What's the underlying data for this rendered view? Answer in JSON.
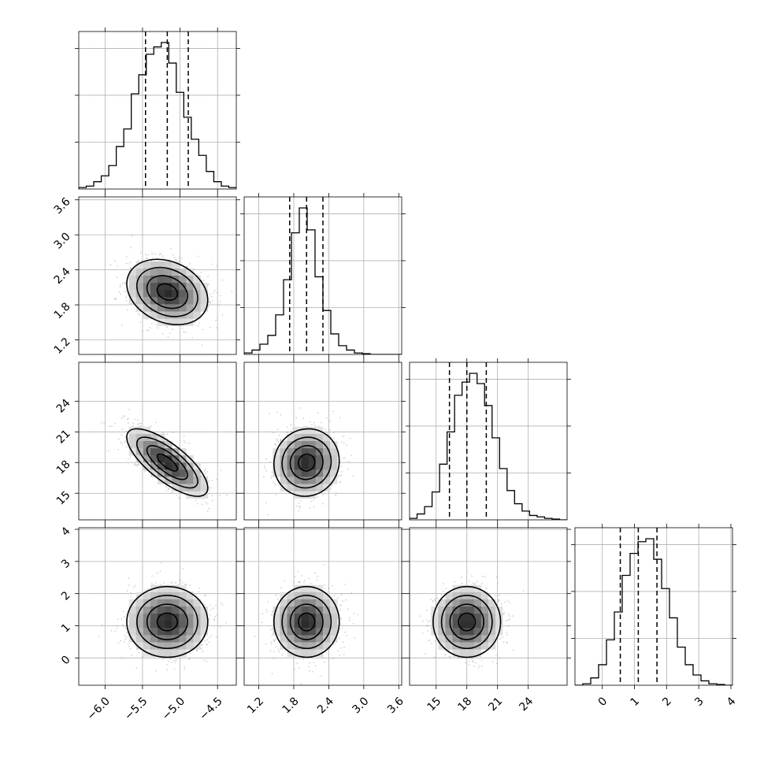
{
  "chart_data": {
    "type": "corner",
    "variables": [
      {
        "range": [
          -6.35,
          -4.25
        ],
        "ticks": [
          -6.0,
          -5.5,
          -5.0,
          -4.5
        ],
        "tick_labels": [
          "−6.0",
          "−5.5",
          "−5.0",
          "−4.5"
        ],
        "mean": -5.17,
        "sd": 0.27,
        "quantiles": [
          -5.46,
          -5.17,
          -4.89
        ]
      },
      {
        "range": [
          0.95,
          3.65
        ],
        "ticks": [
          1.2,
          1.8,
          2.4,
          3.0,
          3.6
        ],
        "tick_labels": [
          "1.2",
          "1.8",
          "2.4",
          "3.0",
          "3.6"
        ],
        "mean": 2.02,
        "sd": 0.28,
        "quantiles": [
          1.73,
          2.02,
          2.3
        ]
      },
      {
        "range": [
          12.4,
          27.8
        ],
        "ticks": [
          15,
          18,
          21,
          24
        ],
        "tick_labels": [
          "15",
          "18",
          "21",
          "24"
        ],
        "mean": 18.0,
        "sd": 1.65,
        "quantiles": [
          16.3,
          18.0,
          19.9
        ]
      },
      {
        "range": [
          -0.85,
          4.05
        ],
        "ticks": [
          0,
          1,
          2,
          3,
          4
        ],
        "tick_labels": [
          "0",
          "1",
          "2",
          "3",
          "4"
        ],
        "mean": 1.12,
        "sd": 0.55,
        "quantiles": [
          0.56,
          1.12,
          1.7
        ]
      }
    ],
    "histograms": [
      [
        0.01,
        0.02,
        0.05,
        0.09,
        0.16,
        0.29,
        0.41,
        0.65,
        0.78,
        0.92,
        0.97,
        1.0,
        0.86,
        0.66,
        0.49,
        0.34,
        0.23,
        0.12,
        0.05,
        0.02,
        0.01
      ],
      [
        0.01,
        0.03,
        0.07,
        0.13,
        0.27,
        0.51,
        0.83,
        1.0,
        0.85,
        0.53,
        0.3,
        0.14,
        0.06,
        0.03,
        0.01,
        0.005,
        0.0,
        0.0,
        0.0,
        0.0
      ],
      [
        0.01,
        0.04,
        0.09,
        0.19,
        0.38,
        0.6,
        0.85,
        0.94,
        1.0,
        0.93,
        0.78,
        0.56,
        0.35,
        0.2,
        0.11,
        0.06,
        0.03,
        0.02,
        0.01,
        0.005,
        0.0
      ],
      [
        0.0,
        0.01,
        0.05,
        0.14,
        0.31,
        0.5,
        0.75,
        0.9,
        0.98,
        1.0,
        0.86,
        0.66,
        0.46,
        0.26,
        0.14,
        0.07,
        0.03,
        0.01,
        0.005,
        0.0
      ]
    ],
    "correlations": [
      [
        1,
        -0.25,
        -0.75,
        0.0
      ],
      [
        -0.25,
        1,
        0.05,
        0.0
      ],
      [
        -0.75,
        0.05,
        1,
        0.0
      ],
      [
        0.0,
        0.0,
        0.0,
        1
      ]
    ],
    "contour_levels_sigma": [
      0.5,
      1.0,
      1.5,
      2.0
    ],
    "grid": true,
    "title": "",
    "xlabel": "",
    "ylabel": ""
  }
}
